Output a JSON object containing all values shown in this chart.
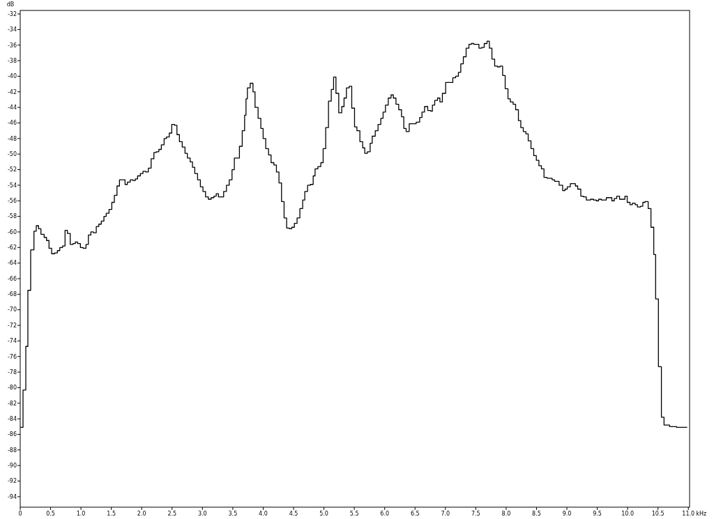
{
  "chart_data": {
    "type": "step",
    "xlabel": "kHz",
    "ylabel": "dB",
    "xlim": [
      0,
      11.02
    ],
    "ylim": [
      -95.35,
      -31.55
    ],
    "xticks": [
      0,
      {
        "value": 0.5,
        "label": "0.5"
      },
      {
        "value": 1,
        "label": "1.0"
      },
      {
        "value": 1.5,
        "label": "1.5"
      },
      {
        "value": 2,
        "label": "2.0"
      },
      {
        "value": 2.5,
        "label": "2.5"
      },
      {
        "value": 3,
        "label": "3.0"
      },
      {
        "value": 3.5,
        "label": "3.5"
      },
      {
        "value": 4,
        "label": "4.0"
      },
      {
        "value": 4.5,
        "label": "4.5"
      },
      {
        "value": 5,
        "label": "5.0"
      },
      {
        "value": 5.5,
        "label": "5.5"
      },
      {
        "value": 6,
        "label": "6.0"
      },
      {
        "value": 6.5,
        "label": "6.5"
      },
      {
        "value": 7,
        "label": "7.0"
      },
      {
        "value": 7.5,
        "label": "7.5"
      },
      {
        "value": 8,
        "label": "8.0"
      },
      {
        "value": 8.5,
        "label": "8.5"
      },
      {
        "value": 9,
        "label": "9.0"
      },
      {
        "value": 9.5,
        "label": "9.5"
      },
      {
        "value": 10,
        "label": "10.0"
      },
      {
        "value": 10.5,
        "label": "10.5"
      },
      {
        "value": 11,
        "label": "11.0"
      }
    ],
    "yticks": [
      -32,
      -34,
      -36,
      -38,
      -40,
      -42,
      -44,
      -46,
      -48,
      -50,
      -52,
      -54,
      -56,
      -58,
      -60,
      -62,
      -64,
      -66,
      -68,
      -70,
      -72,
      -74,
      -76,
      -78,
      -80,
      -82,
      -84,
      -86,
      -88,
      -90,
      -92,
      -94
    ],
    "grid": false,
    "series": [
      {
        "color": "#000000",
        "x": [
          0,
          0.046,
          0.092,
          0.126,
          0.172,
          0.226,
          0.264,
          0.302,
          0.341,
          0.394,
          0.433,
          0.474,
          0.517,
          0.566,
          0.612,
          0.651,
          0.697,
          0.738,
          0.777,
          0.823,
          0.869,
          0.907,
          0.945,
          0.991,
          1.037,
          1.083,
          1.122,
          1.163,
          1.206,
          1.252,
          1.294,
          1.335,
          1.378,
          1.416,
          1.462,
          1.508,
          1.55,
          1.593,
          1.634,
          1.726,
          1.765,
          1.811,
          1.857,
          1.895,
          1.932,
          1.978,
          2.021,
          2.067,
          2.109,
          2.155,
          2.201,
          2.239,
          2.282,
          2.323,
          2.369,
          2.408,
          2.454,
          2.495,
          2.541,
          2.58,
          2.621,
          2.667,
          2.713,
          2.752,
          2.798,
          2.836,
          2.874,
          2.92,
          2.966,
          3.008,
          3.051,
          3.097,
          3.143,
          3.189,
          3.227,
          3.264,
          3.349,
          3.395,
          3.441,
          3.487,
          3.525,
          3.609,
          3.655,
          3.694,
          3.717,
          3.74,
          3.786,
          3.832,
          3.866,
          3.916,
          3.961,
          3.999,
          4.042,
          4.088,
          4.13,
          4.176,
          4.218,
          4.26,
          4.302,
          4.344,
          4.386,
          4.432,
          4.47,
          4.513,
          4.558,
          4.604,
          4.65,
          4.685,
          4.731,
          4.777,
          4.823,
          4.854,
          4.9,
          4.949,
          4.987,
          5.029,
          5.075,
          5.121,
          5.159,
          5.198,
          5.244,
          5.293,
          5.331,
          5.37,
          5.416,
          5.458,
          5.504,
          5.543,
          5.592,
          5.638,
          5.672,
          5.715,
          5.761,
          5.795,
          5.845,
          5.891,
          5.936,
          5.974,
          6.013,
          6.059,
          6.105,
          6.143,
          6.186,
          6.231,
          6.277,
          6.315,
          6.353,
          6.404,
          6.519,
          6.576,
          6.614,
          6.656,
          6.709,
          6.76,
          6.786,
          6.824,
          6.87,
          6.909,
          6.95,
          7.004,
          7.122,
          7.168,
          7.214,
          7.253,
          7.295,
          7.341,
          7.387,
          7.426,
          7.467,
          7.552,
          7.598,
          7.639,
          7.685,
          7.724,
          7.766,
          7.811,
          7.857,
          7.9,
          7.942,
          7.984,
          8.03,
          8.069,
          8.115,
          8.156,
          8.202,
          8.241,
          8.282,
          8.325,
          8.363,
          8.409,
          8.454,
          8.497,
          8.539,
          8.581,
          8.623,
          8.673,
          8.757,
          8.799,
          8.872,
          8.93,
          8.968,
          9.006,
          9.056,
          9.14,
          9.178,
          9.229,
          9.274,
          9.32,
          9.389,
          9.438,
          9.484,
          9.522,
          9.568,
          9.649,
          9.74,
          9.78,
          9.821,
          9.867,
          9.955,
          9.993,
          10.039,
          10.078,
          10.124,
          10.162,
          10.211,
          10.25,
          10.288,
          10.338,
          10.384,
          10.43,
          10.461,
          10.507,
          10.556,
          10.599,
          10.69,
          10.805,
          10.981
        ],
        "values": [
          -85.1,
          -80.3,
          -74.7,
          -67.5,
          -62.3,
          -59.9,
          -59.2,
          -59.6,
          -60.3,
          -60.7,
          -61.1,
          -62.1,
          -62.8,
          -62.7,
          -62.4,
          -62.0,
          -61.8,
          -59.8,
          -60.2,
          -61.6,
          -61.5,
          -61.3,
          -61.5,
          -62.0,
          -62.1,
          -61.6,
          -60.4,
          -60.0,
          -60.1,
          -59.3,
          -59.0,
          -58.6,
          -58.0,
          -57.6,
          -57.1,
          -56.2,
          -55.3,
          -54.1,
          -53.3,
          -53.9,
          -53.6,
          -53.3,
          -53.4,
          -53.2,
          -52.8,
          -52.5,
          -52.2,
          -52.3,
          -51.8,
          -50.6,
          -49.8,
          -49.7,
          -49.4,
          -48.8,
          -48.0,
          -47.8,
          -47.3,
          -46.2,
          -46.3,
          -47.5,
          -48.4,
          -49.1,
          -49.9,
          -50.5,
          -51.0,
          -51.7,
          -52.5,
          -53.3,
          -54.2,
          -54.8,
          -55.5,
          -55.8,
          -55.6,
          -55.4,
          -55.1,
          -55.5,
          -54.8,
          -54.0,
          -53.3,
          -52.0,
          -50.5,
          -49.0,
          -47.0,
          -45.0,
          -42.9,
          -41.5,
          -40.9,
          -42.0,
          -44.0,
          -45.4,
          -46.7,
          -48.0,
          -49.3,
          -50.1,
          -51.1,
          -51.4,
          -52.3,
          -53.7,
          -56.1,
          -58.2,
          -59.5,
          -59.6,
          -59.4,
          -58.9,
          -58.2,
          -57.0,
          -55.9,
          -54.8,
          -54.0,
          -53.9,
          -52.8,
          -51.9,
          -51.6,
          -51.1,
          -49.3,
          -46.6,
          -43.2,
          -41.7,
          -40.1,
          -42.2,
          -44.7,
          -43.9,
          -42.8,
          -41.5,
          -41.3,
          -44.1,
          -46.5,
          -47.0,
          -48.4,
          -49.2,
          -49.9,
          -49.7,
          -48.6,
          -47.7,
          -47.0,
          -46.2,
          -45.4,
          -44.6,
          -43.7,
          -42.8,
          -42.4,
          -42.8,
          -43.6,
          -44.3,
          -45.2,
          -46.7,
          -47.1,
          -46.1,
          -45.9,
          -45.3,
          -44.6,
          -43.9,
          -44.4,
          -44.5,
          -43.7,
          -43.1,
          -42.8,
          -43.3,
          -42.2,
          -40.8,
          -40.2,
          -40.0,
          -39.5,
          -38.4,
          -37.5,
          -36.4,
          -35.9,
          -35.8,
          -35.9,
          -36.4,
          -36.3,
          -35.8,
          -35.5,
          -36.4,
          -37.8,
          -38.7,
          -38.8,
          -38.7,
          -39.9,
          -41.6,
          -42.9,
          -43.3,
          -43.6,
          -44.3,
          -45.7,
          -46.6,
          -47.1,
          -47.4,
          -48.3,
          -49.3,
          -50.2,
          -50.8,
          -51.5,
          -51.9,
          -53.0,
          -53.1,
          -53.3,
          -53.5,
          -54.0,
          -54.7,
          -54.5,
          -54.2,
          -53.8,
          -54.1,
          -54.5,
          -55.4,
          -55.5,
          -55.9,
          -55.8,
          -55.9,
          -56.0,
          -55.8,
          -55.9,
          -55.6,
          -56.0,
          -55.7,
          -55.4,
          -55.8,
          -55.4,
          -56.2,
          -56.5,
          -56.3,
          -56.5,
          -56.8,
          -56.7,
          -56.2,
          -56.1,
          -57.0,
          -59.4,
          -62.9,
          -68.6,
          -77.3,
          -83.8,
          -84.8,
          -85.0,
          -85.1,
          -85.1
        ]
      }
    ]
  }
}
